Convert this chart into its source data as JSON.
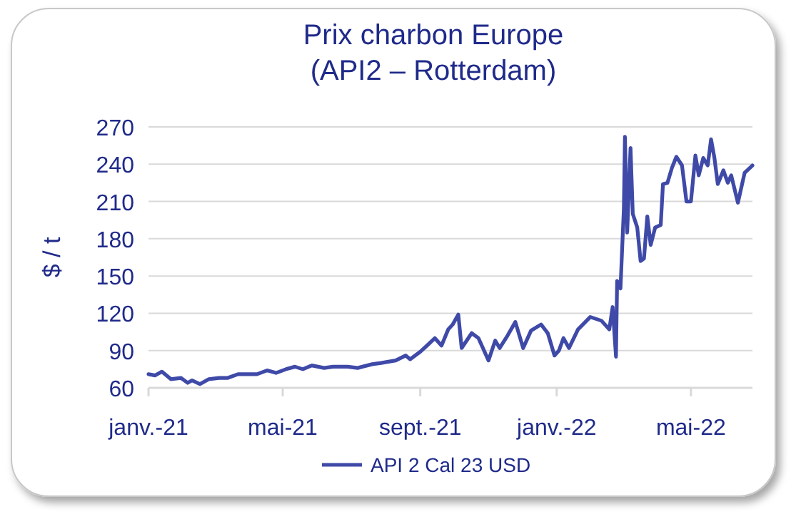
{
  "chart_data": {
    "type": "line",
    "title": "Prix charbon Europe\n(API2 – Rotterdam)",
    "ylabel": "$ / t",
    "x": [
      "2021-01-01",
      "2021-01-07",
      "2021-01-13",
      "2021-01-21",
      "2021-01-30",
      "2021-02-05",
      "2021-02-09",
      "2021-02-16",
      "2021-02-24",
      "2021-03-05",
      "2021-03-13",
      "2021-03-22",
      "2021-03-31",
      "2021-04-08",
      "2021-04-17",
      "2021-04-25",
      "2021-05-04",
      "2021-05-12",
      "2021-05-19",
      "2021-05-27",
      "2021-06-07",
      "2021-06-15",
      "2021-06-28",
      "2021-07-07",
      "2021-07-20",
      "2021-07-28",
      "2021-08-10",
      "2021-08-19",
      "2021-08-23",
      "2021-09-01",
      "2021-09-07",
      "2021-09-14",
      "2021-09-20",
      "2021-09-26",
      "2021-09-30",
      "2021-10-05",
      "2021-10-08",
      "2021-10-17",
      "2021-10-23",
      "2021-11-01",
      "2021-11-07",
      "2021-11-11",
      "2021-11-18",
      "2021-11-25",
      "2021-12-02",
      "2021-12-09",
      "2021-12-18",
      "2021-12-24",
      "2021-12-30",
      "2022-01-03",
      "2022-01-07",
      "2022-01-12",
      "2022-01-20",
      "2022-01-31",
      "2022-02-10",
      "2022-02-17",
      "2022-02-20",
      "2022-02-23",
      "2022-02-24",
      "2022-02-27",
      "2022-03-02",
      "2022-03-03",
      "2022-03-05",
      "2022-03-08",
      "2022-03-10",
      "2022-03-14",
      "2022-03-17",
      "2022-03-20",
      "2022-03-23",
      "2022-03-26",
      "2022-03-30",
      "2022-04-04",
      "2022-04-06",
      "2022-04-10",
      "2022-04-14",
      "2022-04-18",
      "2022-04-23",
      "2022-04-27",
      "2022-05-01",
      "2022-05-05",
      "2022-05-08",
      "2022-05-12",
      "2022-05-16",
      "2022-05-19",
      "2022-05-22",
      "2022-05-25",
      "2022-05-30",
      "2022-06-03",
      "2022-06-06",
      "2022-06-12",
      "2022-06-18",
      "2022-06-25"
    ],
    "series": [
      {
        "name": "API 2 Cal 23 USD",
        "color": "#3f4aa8",
        "values": [
          71,
          70,
          73,
          67,
          68,
          64,
          66,
          63,
          67,
          68,
          68,
          71,
          71,
          71,
          74,
          72,
          75,
          77,
          75,
          78,
          76,
          77,
          77,
          76,
          79,
          80,
          82,
          86,
          83,
          89,
          94,
          100,
          94,
          107,
          111,
          119,
          92,
          104,
          100,
          82,
          98,
          92,
          102,
          113,
          92,
          106,
          111,
          104,
          86,
          90,
          100,
          92,
          107,
          117,
          114,
          107,
          125,
          85,
          146,
          140,
          204,
          262,
          185,
          253,
          200,
          189,
          162,
          164,
          198,
          175,
          189,
          191,
          224,
          225,
          237,
          246,
          239,
          210,
          210,
          247,
          231,
          245,
          239,
          260,
          245,
          224,
          235,
          225,
          231,
          209,
          233,
          239
        ]
      }
    ],
    "xlim": [
      "2021-01-01",
      "2022-06-25"
    ],
    "xticks": [
      {
        "value": "2021-01-01",
        "label": "janv.-21"
      },
      {
        "value": "2021-05-01",
        "label": "mai-21"
      },
      {
        "value": "2021-09-01",
        "label": "sept.-21"
      },
      {
        "value": "2022-01-01",
        "label": "janv.-22"
      },
      {
        "value": "2022-05-01",
        "label": "mai-22"
      }
    ],
    "ylim": [
      60,
      270
    ],
    "yticks": [
      60,
      90,
      120,
      150,
      180,
      210,
      240,
      270
    ],
    "grid": "y",
    "legend": "bottom",
    "marker": "none",
    "line_style": "solid"
  }
}
